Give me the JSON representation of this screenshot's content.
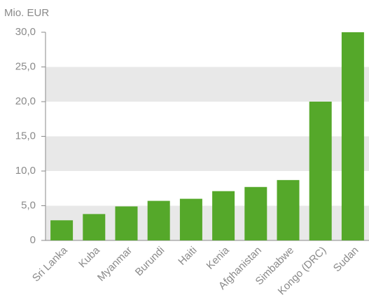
{
  "chart_data": {
    "type": "bar",
    "y_axis_label": "Mio. EUR",
    "categories": [
      "Sri Lanka",
      "Kuba",
      "Myanmar",
      "Burundi",
      "Haiti",
      "Kenia",
      "Afghanistan",
      "Simbabwe",
      "Kongo (DRC)",
      "Sudan"
    ],
    "values": [
      2.9,
      3.8,
      4.9,
      5.7,
      6.0,
      7.1,
      7.7,
      8.7,
      20.0,
      30.0
    ],
    "color": "#55a82a",
    "ylim": [
      0,
      30
    ],
    "yticks": [
      0,
      {
        "value": 5,
        "label": "5,0"
      },
      {
        "value": 10,
        "label": "10,0"
      },
      {
        "value": 15,
        "label": "15,0"
      },
      {
        "value": 20,
        "label": "20,0"
      },
      {
        "value": 25,
        "label": "25,0"
      },
      {
        "value": 30,
        "label": "30,0"
      }
    ],
    "grid": true
  }
}
